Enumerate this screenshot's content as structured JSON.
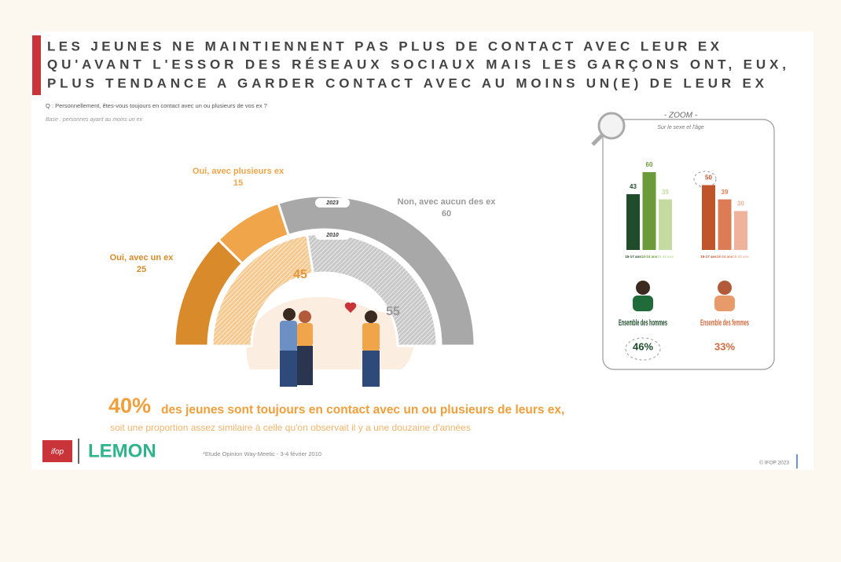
{
  "title_lines": [
    "LES JEUNES NE MAINTIENNENT PAS PLUS DE CONTACT AVEC LEUR EX",
    "QU'AVANT L'ESSOR DES RÉSEAUX SOCIAUX MAIS LES GARÇONS ONT, EUX,",
    "PLUS TENDANCE A GARDER CONTACT AVEC AU MOINS UN(E) DE LEUR EX"
  ],
  "question": "Q : Personnellement, êtes-vous toujours en contact avec un ou plusieurs de vos ex ?",
  "base": "Base : personnes ayant au moins un ex",
  "chart_data": [
    {
      "type": "semi-donut",
      "title": "2023",
      "categories": [
        "Oui, avec un ex",
        "Oui, avec plusieurs ex",
        "Non, avec aucun des ex"
      ],
      "values": [
        25,
        15,
        60
      ],
      "colors": [
        "#d98a2b",
        "#f0a54a",
        "#a8a8a8"
      ]
    },
    {
      "type": "semi-donut",
      "title": "2010",
      "values": [
        45,
        55
      ],
      "colors": [
        "#f5c98f",
        "#d4d4d4"
      ]
    },
    {
      "type": "bar",
      "categories": [
        "15-17 ans",
        "18-24 ans",
        "25-34 ans"
      ],
      "values": [
        43,
        60,
        39
      ],
      "colors": [
        "#1f4d2b",
        "#6a9a3a",
        "#c3dba0"
      ],
      "total": {
        "label": "Ensemble des hommes",
        "value": 46,
        "value_label": "46%"
      }
    },
    {
      "type": "bar",
      "categories": [
        "15-17 ans",
        "18-24 ans",
        "25-34 ans"
      ],
      "values": [
        50,
        39,
        30
      ],
      "colors": [
        "#c0552b",
        "#dc7c57",
        "#eeb39a"
      ],
      "total": {
        "label": "Ensemble des femmes",
        "value": 33,
        "value_label": "33%"
      }
    }
  ],
  "zoom": {
    "title": "- ZOOM -",
    "subtitle": "Sur le sexe et l'âge"
  },
  "headline": {
    "figure": 40,
    "figure_label": "40%",
    "text": "des jeunes sont toujours en contact avec un ou plusieurs de leurs ex,",
    "subtext": "soit une proportion assez similaire à celle qu'on observait il y a une douzaine d'années"
  },
  "footer": {
    "logo_left": "ifop",
    "logo_right": "LEMON",
    "note": "*Etude Opinion Way-Meetic - 3-4 février 2010",
    "copyright": "© IFOP 2023"
  }
}
